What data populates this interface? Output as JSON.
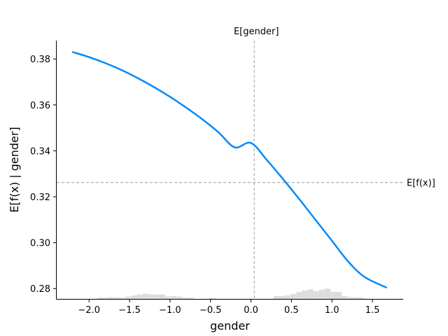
{
  "chart_data": {
    "type": "line",
    "xlabel": "gender",
    "ylabel": "E[f(x) | gender]",
    "xlim": [
      -2.4,
      1.88
    ],
    "ylim": [
      0.2755,
      0.388
    ],
    "x_ticks": [
      -2.0,
      -1.5,
      -1.0,
      -0.5,
      0.0,
      0.5,
      1.0,
      1.5
    ],
    "x_tick_labels": [
      "−2.0",
      "−1.5",
      "−1.0",
      "−0.5",
      "0.0",
      "0.5",
      "1.0",
      "1.5"
    ],
    "y_ticks": [
      0.28,
      0.3,
      0.32,
      0.34,
      0.36,
      0.38
    ],
    "y_tick_labels": [
      "0.28",
      "0.30",
      "0.32",
      "0.34",
      "0.36",
      "0.38"
    ],
    "grid": false,
    "colors": {
      "line": "#008bfb",
      "reference": "#999999",
      "histogram": "#dddddd"
    },
    "series": [
      {
        "x": [
          -2.2,
          -2.0,
          -1.8,
          -1.6,
          -1.4,
          -1.2,
          -1.0,
          -0.8,
          -0.6,
          -0.4,
          -0.2,
          0.0,
          0.2,
          0.4,
          0.6,
          0.8,
          1.0,
          1.2,
          1.4,
          1.67
        ],
        "y": [
          0.383,
          0.3808,
          0.3782,
          0.3752,
          0.3717,
          0.3678,
          0.3635,
          0.3588,
          0.3537,
          0.348,
          0.3415,
          0.3434,
          0.3358,
          0.3275,
          0.3188,
          0.3098,
          0.3008,
          0.2918,
          0.2851,
          0.2805
        ]
      }
    ],
    "reference_lines": {
      "vertical": {
        "x": 0.04,
        "label": "E[gender]"
      },
      "horizontal": {
        "y": 0.3262,
        "label": "E[f(x)]"
      }
    },
    "histogram": {
      "bin_width": 0.07,
      "bins": [
        {
          "x": -1.9,
          "h": 0.25
        },
        {
          "x": -1.83,
          "h": 0.25
        },
        {
          "x": -1.76,
          "h": 0.35
        },
        {
          "x": -1.69,
          "h": 0.3
        },
        {
          "x": -1.62,
          "h": 0.25
        },
        {
          "x": -1.55,
          "h": 0.45
        },
        {
          "x": -1.48,
          "h": 0.65
        },
        {
          "x": -1.41,
          "h": 0.85
        },
        {
          "x": -1.34,
          "h": 1.0
        },
        {
          "x": -1.27,
          "h": 0.9
        },
        {
          "x": -1.2,
          "h": 0.8
        },
        {
          "x": -1.13,
          "h": 0.85
        },
        {
          "x": -1.06,
          "h": 0.45
        },
        {
          "x": -0.99,
          "h": 0.55
        },
        {
          "x": -0.92,
          "h": 0.45
        },
        {
          "x": -0.85,
          "h": 0.25
        },
        {
          "x": -0.78,
          "h": 0.25
        },
        {
          "x": -0.5,
          "h": 0.15
        },
        {
          "x": 0.28,
          "h": 0.55
        },
        {
          "x": 0.35,
          "h": 0.55
        },
        {
          "x": 0.42,
          "h": 0.7
        },
        {
          "x": 0.49,
          "h": 0.95
        },
        {
          "x": 0.56,
          "h": 1.3
        },
        {
          "x": 0.63,
          "h": 1.6
        },
        {
          "x": 0.7,
          "h": 1.85
        },
        {
          "x": 0.77,
          "h": 1.45
        },
        {
          "x": 0.84,
          "h": 1.75
        },
        {
          "x": 0.91,
          "h": 1.95
        },
        {
          "x": 0.98,
          "h": 1.35
        },
        {
          "x": 1.05,
          "h": 1.35
        },
        {
          "x": 1.12,
          "h": 0.55
        },
        {
          "x": 1.19,
          "h": 0.35
        },
        {
          "x": 1.26,
          "h": 0.3
        },
        {
          "x": 1.33,
          "h": 0.25
        }
      ]
    }
  }
}
